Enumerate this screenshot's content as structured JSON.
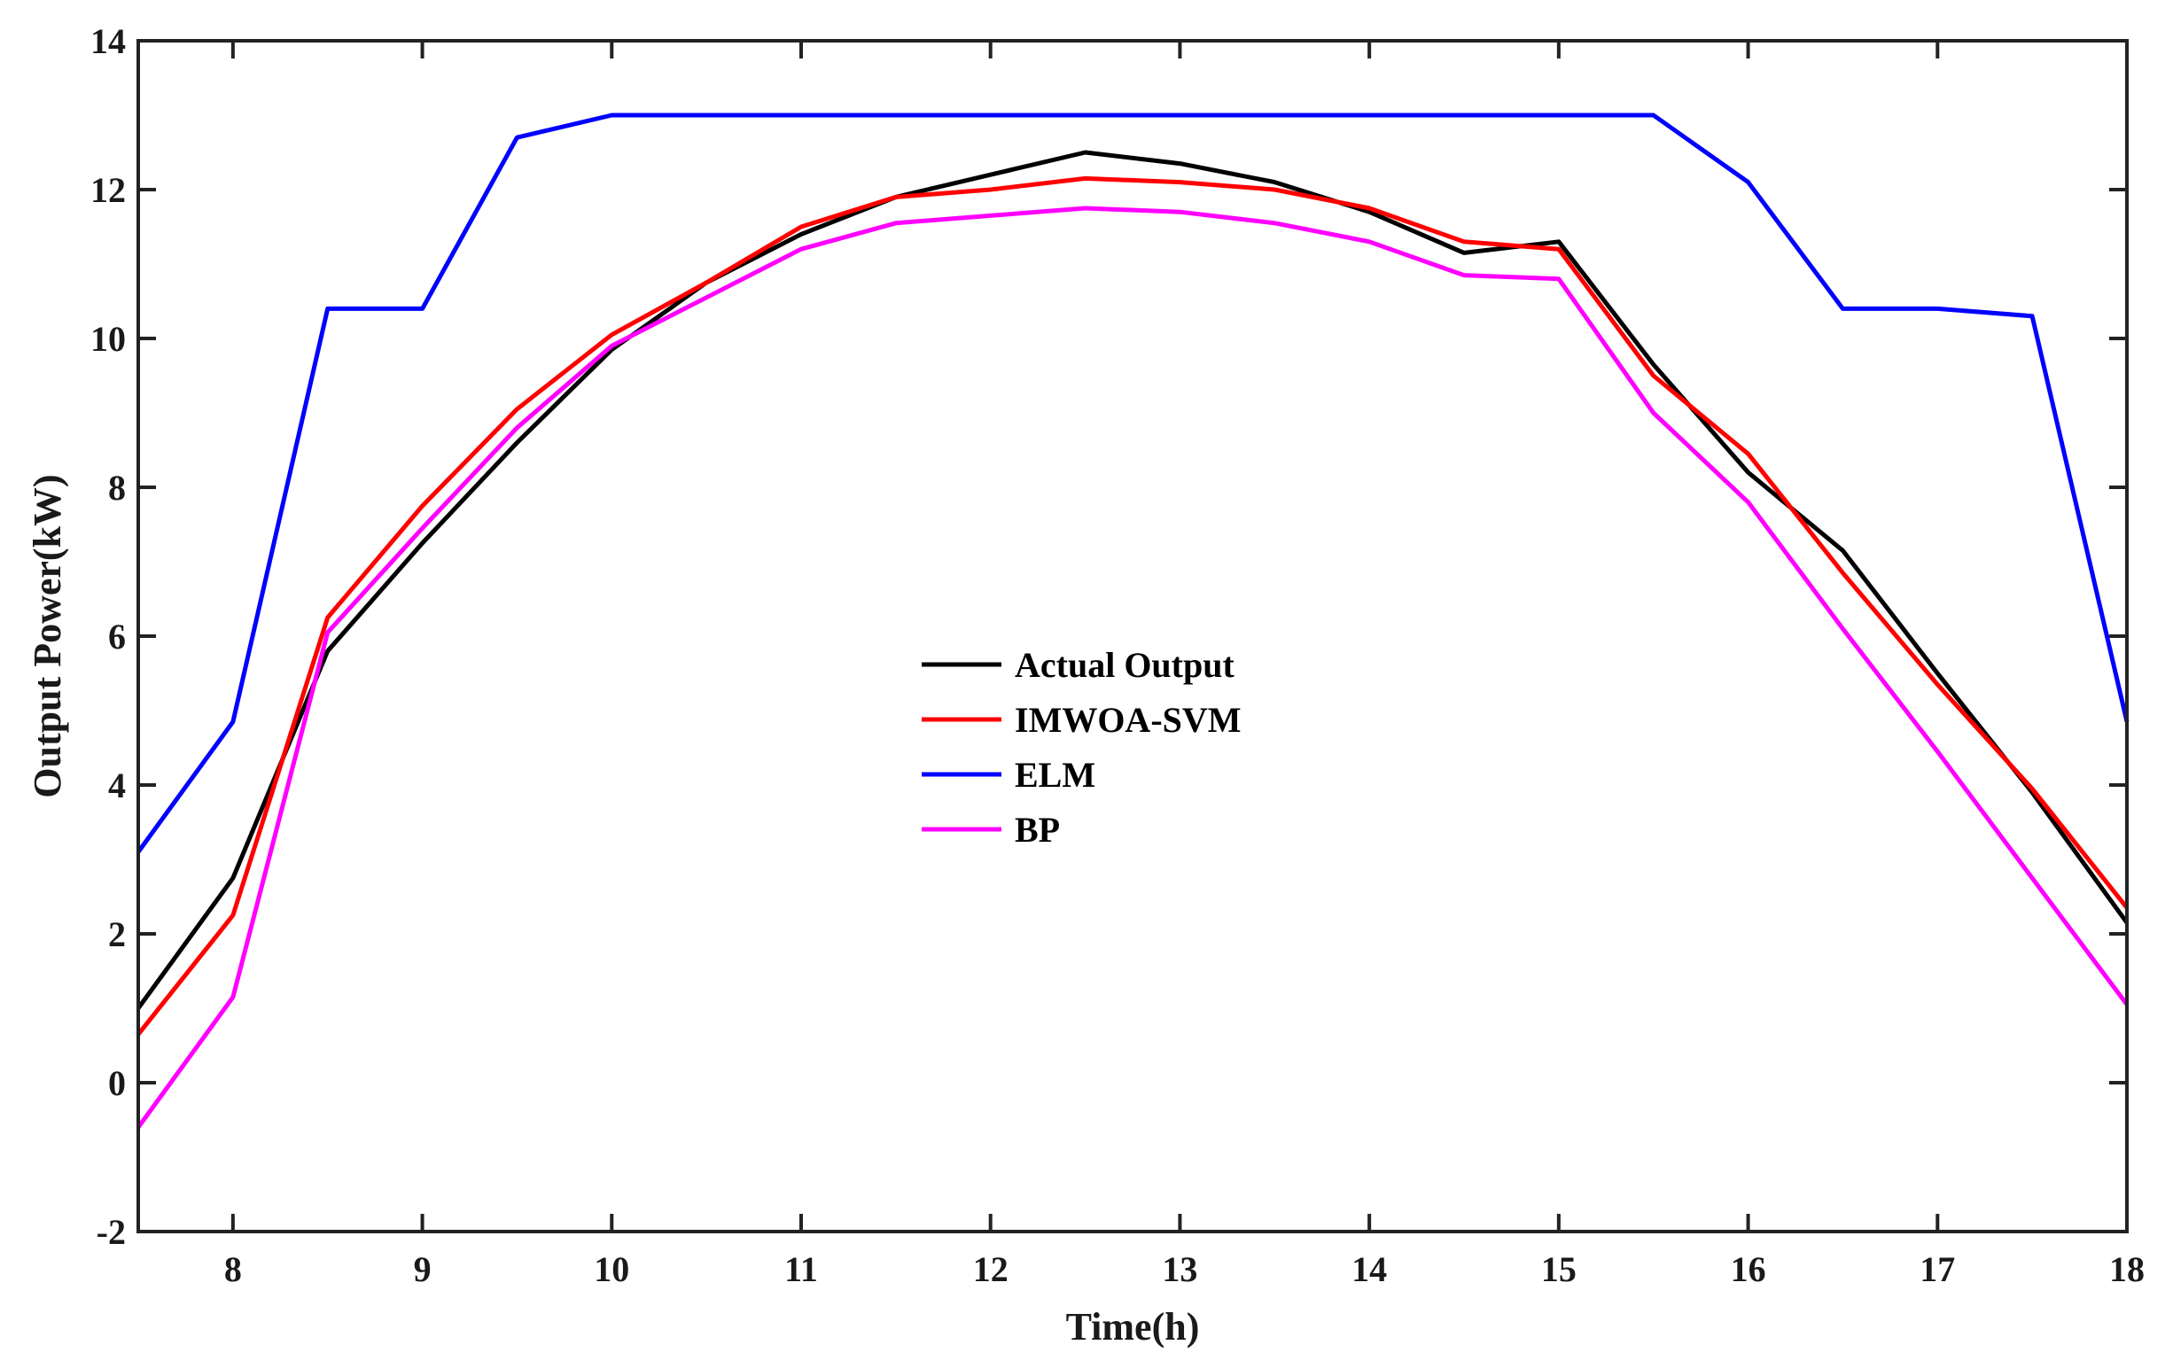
{
  "chart_data": {
    "type": "line",
    "title": "",
    "xlabel": "Time(h)",
    "ylabel": "Output Power(kW)",
    "xlim": [
      7.5,
      18
    ],
    "ylim": [
      -2,
      14
    ],
    "xticks": [
      8,
      9,
      10,
      11,
      12,
      13,
      14,
      15,
      16,
      17,
      18
    ],
    "yticks": [
      -2,
      0,
      2,
      4,
      6,
      8,
      10,
      12,
      14
    ],
    "grid": false,
    "legend_position": "center",
    "x": [
      7.5,
      8,
      8.5,
      9,
      9.5,
      10,
      10.5,
      11,
      11.5,
      12,
      12.5,
      13,
      13.5,
      14,
      14.5,
      15,
      15.5,
      16,
      16.5,
      17,
      17.5,
      18
    ],
    "series": [
      {
        "name": "Actual Output",
        "color": "#000000",
        "values": [
          1.0,
          2.75,
          5.8,
          7.25,
          8.6,
          9.85,
          10.75,
          11.4,
          11.9,
          12.2,
          12.5,
          12.35,
          12.1,
          11.7,
          11.15,
          11.3,
          9.65,
          8.2,
          7.15,
          5.5,
          3.9,
          2.15
        ]
      },
      {
        "name": "IMWOA-SVM",
        "color": "#ff0000",
        "values": [
          0.65,
          2.25,
          6.25,
          7.75,
          9.05,
          10.05,
          10.75,
          11.5,
          11.9,
          12.0,
          12.15,
          12.1,
          12.0,
          11.75,
          11.3,
          11.2,
          9.5,
          8.45,
          6.85,
          5.35,
          3.95,
          2.35
        ]
      },
      {
        "name": "ELM",
        "color": "#0000ff",
        "values": [
          3.1,
          4.85,
          10.4,
          10.4,
          12.7,
          13.0,
          13.0,
          13.0,
          13.0,
          13.0,
          13.0,
          13.0,
          13.0,
          13.0,
          13.0,
          13.0,
          13.0,
          12.1,
          10.4,
          10.4,
          10.3,
          4.85
        ]
      },
      {
        "name": "BP",
        "color": "#ff00ff",
        "values": [
          -0.6,
          1.15,
          6.05,
          7.45,
          8.8,
          9.9,
          10.55,
          11.2,
          11.55,
          11.65,
          11.75,
          11.7,
          11.55,
          11.3,
          10.85,
          10.8,
          9.0,
          7.8,
          6.1,
          4.45,
          2.75,
          1.05
        ]
      }
    ]
  }
}
